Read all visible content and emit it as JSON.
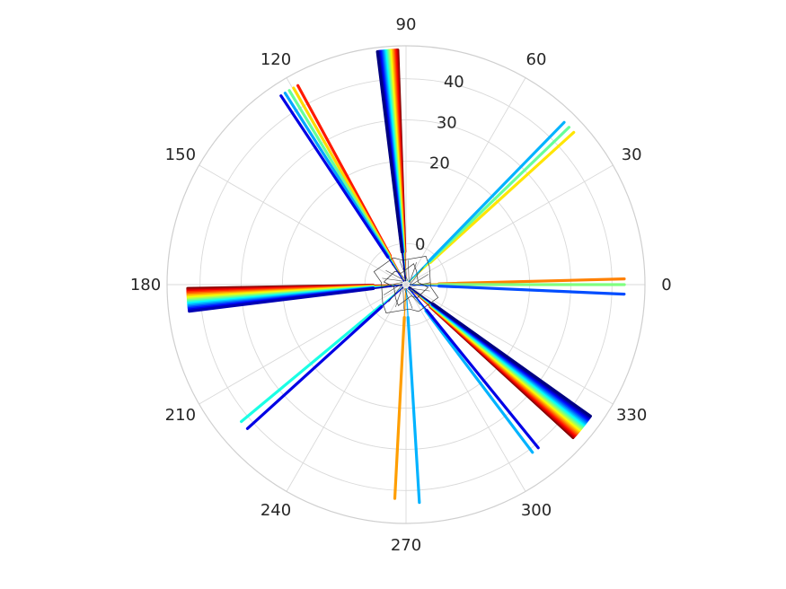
{
  "chart_data": {
    "type": "scatter",
    "coordinate_system": "polar",
    "theta_unit": "degrees",
    "theta_ticks": [
      "0",
      "30",
      "60",
      "90",
      "120",
      "150",
      "180",
      "210",
      "240",
      "270",
      "300",
      "330"
    ],
    "r_ticks": [
      "0",
      "20",
      "30",
      "40"
    ],
    "r_tick_values": [
      0,
      20,
      30,
      40
    ],
    "rlim": [
      -10,
      48
    ],
    "grid": true,
    "colormap": "jet",
    "spokes": [
      {
        "theta": 94.5,
        "r_end": 47,
        "fan": 5.0,
        "count": 22,
        "c0": 1.0,
        "c1": 0.0
      },
      {
        "theta": 184.0,
        "r_end": 43,
        "fan": 6.0,
        "count": 18,
        "c0": 1.0,
        "c1": 0.05
      },
      {
        "theta": 321.0,
        "r_end": 45,
        "fan": 7.0,
        "count": 22,
        "c0": 1.0,
        "c1": 0.0
      },
      {
        "theta": 121.0,
        "r_end": 45,
        "fan": 5.0,
        "count": 5,
        "c0": 0.85,
        "c1": 0.1
      },
      {
        "theta": 44.0,
        "r_end": 45,
        "fan": 3.5,
        "count": 3,
        "c0": 0.65,
        "c1": 0.3
      },
      {
        "theta": 1.5,
        "r_end": 43,
        "count": 1,
        "c0": 0.75,
        "c1": 0.75
      },
      {
        "theta": 0.0,
        "r_end": 43,
        "count": 1,
        "c0": 0.5,
        "c1": 0.5
      },
      {
        "theta": 357.5,
        "r_end": 43,
        "count": 1,
        "c0": 0.2,
        "c1": 0.2
      },
      {
        "theta": 221.0,
        "r_end": 42,
        "fan": 2.5,
        "count": 2,
        "c0": 0.4,
        "c1": 0.1
      },
      {
        "theta": 267.0,
        "r_end": 42,
        "count": 1,
        "c0": 0.72,
        "c1": 0.72
      },
      {
        "theta": 273.5,
        "r_end": 43,
        "count": 1,
        "c0": 0.3,
        "c1": 0.3
      },
      {
        "theta": 308.0,
        "r_end": 41,
        "fan": 2.0,
        "count": 2,
        "c0": 0.3,
        "c1": 0.1
      }
    ]
  }
}
